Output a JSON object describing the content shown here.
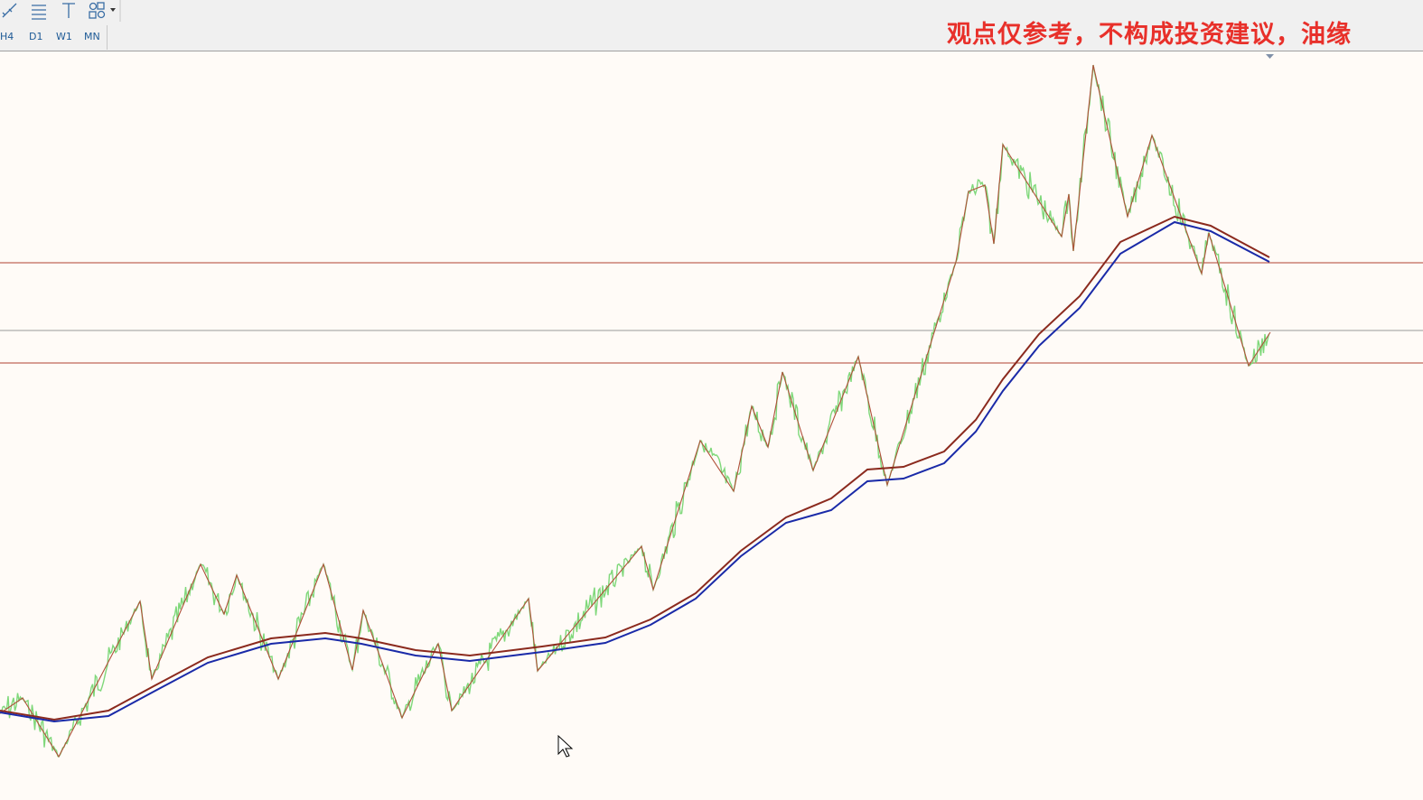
{
  "toolbar": {
    "timeframes": [
      "H4",
      "D1",
      "W1",
      "MN"
    ]
  },
  "banner": "观点仅参考，不构成投资建议，油缘"
}
